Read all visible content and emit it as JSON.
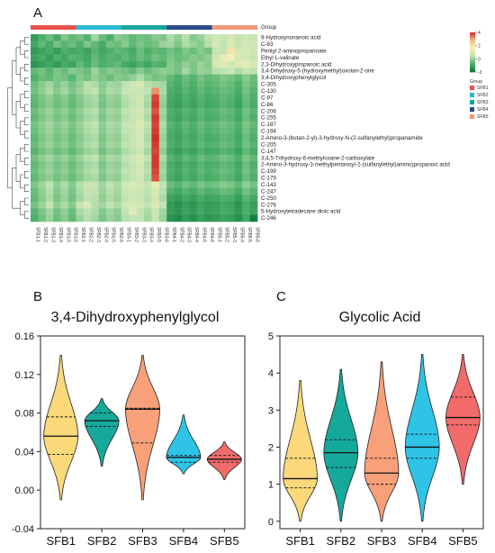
{
  "chart_data": [
    {
      "panel": "A",
      "type": "heatmap",
      "annotation_label": "Group",
      "rows": [
        "9-Hydroxynonanoic acid",
        "C-83",
        "Pentyl 2-aminopropanoate",
        "Ethyl L-valinate",
        "2,3-Dihydroxypropanoic acid",
        "3,4-Dihydroxy-5-(hydroxymethyl)oxolan-2-one",
        "3,4-Dihydroxyphenylglycol",
        "C-305",
        "C-130",
        "C-97",
        "C-86",
        "C-206",
        "C-255",
        "C-187",
        "C-194",
        "2-Amino-3-(butan-2-yl)-3-hydroxy-N-(2-sulfanylethyl)propanamide",
        "C-205",
        "C-147",
        "3,4,5-Trihydroxy-6-methyloxane-2-carboxylate",
        "2-Amino-3-hydroxy-3-methylpentanoyl-2-(sulfanylethyl)amino)propanoic acid",
        "C-199",
        "C-179",
        "C-143",
        "C-247",
        "C-250",
        "C-276",
        "5-Hydroxytetradecane dioic acid",
        "C-246"
      ],
      "columns": [
        "SFB1-1",
        "SFB1-2",
        "SFB1-3",
        "SFB1-4",
        "SFB1-5",
        "SFB1-6",
        "SFB2-1",
        "SFB2-2",
        "SFB2-3",
        "SFB2-4",
        "SFB2-5",
        "SFB2-6",
        "SFB3-1",
        "SFB3-2",
        "SFB3-3",
        "SFB3-4",
        "SFB3-5",
        "SFB3-6",
        "SFB4-1",
        "SFB4-2",
        "SFB4-3",
        "SFB4-4",
        "SFB4-5",
        "SFB4-6",
        "SFB5-1",
        "SFB5-2",
        "SFB5-3",
        "SFB5-4",
        "SFB5-5",
        "SFB5-6"
      ],
      "groups": [
        "SFB1",
        "SFB2",
        "SFB3",
        "SFB4",
        "SFB5"
      ],
      "group_colors": [
        "#e9524a",
        "#2bb8d6",
        "#16a39a",
        "#2a4a8c",
        "#f29a78"
      ],
      "legend_title": "Group",
      "color_scale": {
        "min": -2,
        "max": 4,
        "ticks": [
          4,
          2,
          0,
          -2
        ],
        "colors": [
          "#0b7a3e",
          "#4fb06a",
          "#bfe3b2",
          "#f6f0b8",
          "#f3c78a",
          "#d42a2a"
        ]
      },
      "values": [
        [
          -1.2,
          -0.8,
          -0.5,
          -0.9,
          -0.3,
          -0.6,
          -0.4,
          -0.7,
          0.1,
          -0.5,
          -0.8,
          -0.2,
          -0.3,
          -0.6,
          -0.4,
          -0.5,
          -0.2,
          -0.3,
          0.2,
          -0.1,
          0.3,
          -0.2,
          0.0,
          0.4,
          0.8,
          0.6,
          0.9,
          0.5,
          0.7,
          0.6
        ],
        [
          -1.0,
          -0.6,
          -0.9,
          -0.4,
          -0.7,
          -0.5,
          -0.8,
          -0.3,
          -0.6,
          -0.9,
          -0.4,
          -0.5,
          -0.2,
          -0.6,
          -0.3,
          -0.5,
          -0.4,
          0.0,
          0.1,
          -0.3,
          0.2,
          0.0,
          -0.2,
          0.3,
          0.9,
          0.4,
          1.0,
          0.5,
          0.8,
          0.7
        ],
        [
          -1.3,
          -1.1,
          -0.9,
          -1.2,
          -0.8,
          -1.0,
          -0.9,
          -1.1,
          -0.7,
          -1.0,
          -0.8,
          -0.6,
          -0.7,
          -0.9,
          -0.5,
          -0.8,
          -0.6,
          -0.7,
          -0.4,
          -0.6,
          -0.3,
          -0.5,
          -0.2,
          -0.4,
          0.6,
          0.5,
          2.0,
          0.8,
          0.9,
          0.7
        ],
        [
          -1.1,
          -0.9,
          -1.2,
          -0.8,
          -1.0,
          -0.7,
          -0.8,
          -1.0,
          -0.6,
          -0.9,
          -0.7,
          -0.8,
          -0.6,
          -0.8,
          -0.5,
          -0.7,
          -0.4,
          -0.6,
          -0.3,
          -0.5,
          -0.4,
          -0.2,
          -0.3,
          -0.1,
          0.7,
          1.2,
          1.5,
          0.9,
          0.8,
          0.6
        ],
        [
          -1.4,
          -1.2,
          -1.0,
          -1.3,
          -0.9,
          -1.1,
          -0.6,
          -0.9,
          -0.5,
          -0.8,
          -0.7,
          -0.6,
          -0.9,
          -1.1,
          -0.8,
          -1.0,
          -0.7,
          -0.8,
          -0.2,
          -0.4,
          -0.1,
          -0.3,
          0.0,
          -0.2,
          0.9,
          1.1,
          0.8,
          1.0,
          1.2,
          0.9
        ],
        [
          -0.6,
          -0.4,
          -0.7,
          -0.3,
          -0.5,
          -0.2,
          -0.3,
          -0.5,
          0.0,
          -0.4,
          -0.2,
          -0.3,
          -0.4,
          -0.6,
          -0.2,
          -0.5,
          -0.3,
          -0.1,
          -0.2,
          -0.4,
          0.1,
          -0.3,
          0.0,
          -0.1,
          0.3,
          0.4,
          0.6,
          0.2,
          0.5,
          0.4
        ],
        [
          -0.8,
          -0.5,
          -0.6,
          -0.3,
          -0.4,
          -0.7,
          -0.2,
          -0.4,
          -0.1,
          -0.3,
          -0.5,
          -0.2,
          -0.3,
          -0.1,
          0.2,
          -0.2,
          -0.4,
          -0.3,
          -0.6,
          -0.8,
          -0.5,
          -0.7,
          -0.4,
          -0.6,
          -0.5,
          -0.3,
          -0.4,
          -0.6,
          -0.2,
          -0.5
        ],
        [
          -0.5,
          -0.2,
          0.1,
          -0.3,
          0.0,
          -0.4,
          -0.1,
          0.3,
          0.2,
          -0.2,
          0.1,
          0.0,
          0.4,
          0.6,
          1.0,
          0.3,
          0.2,
          0.1,
          -0.7,
          -0.9,
          -0.6,
          -0.8,
          -0.5,
          -0.7,
          -0.6,
          -0.4,
          -0.5,
          -0.8,
          -0.3,
          -0.6
        ],
        [
          -0.4,
          -0.1,
          0.2,
          -0.2,
          0.1,
          -0.3,
          0.0,
          0.3,
          0.4,
          -0.1,
          0.2,
          0.1,
          0.5,
          0.7,
          0.6,
          0.4,
          3.2,
          0.2,
          -0.8,
          -1.0,
          -0.7,
          -0.9,
          -0.6,
          -0.8,
          -0.7,
          -0.5,
          -0.6,
          -0.9,
          -0.4,
          -0.7
        ],
        [
          -0.6,
          -0.3,
          -0.1,
          -0.4,
          -0.2,
          -0.5,
          -0.2,
          0.1,
          0.2,
          -0.3,
          0.0,
          -0.1,
          0.3,
          0.5,
          0.8,
          0.2,
          3.8,
          0.0,
          -0.9,
          -1.1,
          -0.8,
          -1.0,
          -0.7,
          -0.9,
          -0.8,
          -0.6,
          -0.7,
          -1.0,
          -0.5,
          -0.8
        ],
        [
          -0.7,
          -0.4,
          -0.2,
          -0.5,
          -0.3,
          -0.6,
          -0.3,
          0.0,
          0.1,
          -0.4,
          -0.1,
          -0.2,
          0.2,
          0.4,
          0.7,
          0.1,
          3.9,
          -0.1,
          -1.0,
          -1.2,
          -0.9,
          -1.1,
          -0.8,
          -1.0,
          -0.9,
          -0.7,
          -0.8,
          -1.1,
          -0.6,
          -0.9
        ],
        [
          -0.5,
          -0.2,
          0.0,
          -0.3,
          -0.1,
          -0.4,
          -0.1,
          0.2,
          0.3,
          -0.2,
          0.1,
          0.0,
          0.4,
          0.6,
          0.9,
          0.3,
          3.7,
          0.1,
          -0.8,
          -1.0,
          -0.7,
          -0.9,
          -0.6,
          -0.8,
          -0.7,
          -0.5,
          -0.6,
          -0.9,
          -0.4,
          -0.7
        ],
        [
          -0.6,
          -0.3,
          -0.1,
          -0.4,
          -0.2,
          -0.5,
          -0.2,
          0.1,
          0.2,
          -0.3,
          0.0,
          -0.1,
          0.3,
          0.5,
          0.8,
          0.2,
          3.9,
          0.0,
          -0.9,
          -1.1,
          -0.8,
          -1.0,
          -0.7,
          -0.9,
          -0.8,
          -0.6,
          -0.7,
          -1.0,
          -0.5,
          -0.8
        ],
        [
          -0.4,
          -0.1,
          0.1,
          -0.2,
          0.0,
          -0.3,
          0.0,
          0.3,
          0.4,
          -0.1,
          0.2,
          0.1,
          0.5,
          0.7,
          1.0,
          0.4,
          3.8,
          0.2,
          -0.7,
          -0.9,
          -0.6,
          -0.8,
          -0.5,
          -0.7,
          -0.6,
          -0.4,
          -0.5,
          -0.8,
          -0.3,
          -0.6
        ],
        [
          -0.5,
          -0.2,
          0.0,
          -0.3,
          -0.1,
          -0.4,
          -0.1,
          0.2,
          0.3,
          -0.2,
          0.1,
          0.0,
          0.4,
          0.6,
          0.9,
          0.3,
          3.9,
          0.1,
          -0.8,
          -1.0,
          -0.7,
          -0.9,
          -0.6,
          -0.8,
          -0.7,
          -0.5,
          -0.6,
          -0.9,
          -0.4,
          -0.7
        ],
        [
          -0.6,
          -0.3,
          -0.1,
          -0.4,
          -0.2,
          -0.5,
          -0.2,
          0.1,
          0.2,
          -0.3,
          0.0,
          -0.1,
          0.3,
          0.5,
          0.8,
          0.2,
          4.0,
          0.0,
          -0.9,
          -1.1,
          -0.8,
          -1.0,
          -0.7,
          -0.9,
          -0.8,
          -0.6,
          -0.7,
          -1.0,
          -0.5,
          -0.8
        ],
        [
          -0.5,
          -0.2,
          0.0,
          -0.3,
          -0.1,
          -0.4,
          -0.1,
          0.2,
          0.3,
          -0.2,
          0.1,
          0.0,
          0.4,
          0.6,
          0.9,
          0.3,
          3.9,
          0.1,
          -0.8,
          -1.0,
          -0.7,
          -0.9,
          -0.6,
          -0.8,
          -0.7,
          -0.5,
          -0.6,
          -0.9,
          -0.4,
          -0.7
        ],
        [
          -0.7,
          -0.4,
          -0.2,
          -0.5,
          -0.3,
          -0.6,
          -0.3,
          0.0,
          0.1,
          -0.4,
          -0.1,
          -0.2,
          0.2,
          0.4,
          0.7,
          0.1,
          3.8,
          -0.1,
          -1.0,
          -1.2,
          -0.9,
          -1.1,
          -0.8,
          -1.0,
          -0.9,
          -0.7,
          -0.8,
          -1.1,
          -0.6,
          -0.9
        ],
        [
          -0.4,
          -0.1,
          0.1,
          -0.2,
          0.0,
          -0.3,
          0.0,
          0.3,
          0.4,
          -0.1,
          0.2,
          0.1,
          0.5,
          0.7,
          1.0,
          0.4,
          3.9,
          0.2,
          -0.7,
          -0.9,
          -0.6,
          -0.8,
          -0.5,
          -0.7,
          -0.6,
          -0.4,
          -0.5,
          -0.8,
          -0.3,
          -0.6
        ],
        [
          -0.6,
          -0.3,
          -0.1,
          -0.4,
          -0.2,
          -0.5,
          -0.2,
          0.1,
          0.2,
          -0.3,
          0.0,
          -0.1,
          0.3,
          0.5,
          0.8,
          0.2,
          3.9,
          0.0,
          -0.9,
          -1.1,
          -0.8,
          -1.0,
          -0.7,
          -0.9,
          -0.8,
          -0.6,
          -0.7,
          -1.0,
          -0.5,
          -0.8
        ],
        [
          -0.5,
          -0.2,
          0.0,
          -0.3,
          -0.1,
          -0.4,
          -0.1,
          0.2,
          0.3,
          -0.2,
          0.1,
          0.0,
          0.4,
          0.6,
          0.9,
          0.3,
          3.8,
          0.1,
          -0.8,
          -1.0,
          -0.7,
          -0.9,
          -0.6,
          -0.8,
          -0.7,
          -0.5,
          -0.6,
          -0.9,
          -0.4,
          -0.7
        ],
        [
          -0.6,
          -0.3,
          -0.1,
          -0.4,
          -0.2,
          -0.5,
          -0.2,
          0.1,
          0.2,
          -0.3,
          0.0,
          -0.1,
          0.3,
          0.5,
          0.8,
          0.2,
          3.7,
          0.0,
          -0.9,
          -1.1,
          -0.8,
          -1.0,
          -0.7,
          -0.9,
          -0.8,
          -0.6,
          -0.7,
          -1.0,
          -0.5,
          -0.8
        ],
        [
          -0.3,
          0.0,
          0.4,
          -0.1,
          0.2,
          -0.2,
          0.3,
          0.6,
          0.5,
          0.1,
          0.4,
          0.2,
          0.7,
          0.9,
          0.8,
          0.5,
          1.2,
          0.4,
          -0.5,
          -0.7,
          -0.4,
          -0.6,
          -0.3,
          -0.5,
          -0.4,
          -0.2,
          -0.3,
          -0.6,
          -0.1,
          -0.4
        ],
        [
          -0.5,
          -0.1,
          0.3,
          -0.2,
          0.1,
          -0.3,
          0.2,
          0.5,
          0.4,
          0.0,
          0.3,
          0.1,
          0.6,
          0.8,
          0.7,
          0.4,
          0.9,
          0.3,
          -0.8,
          -1.0,
          -0.7,
          -0.9,
          -0.6,
          -0.8,
          -0.7,
          -0.5,
          -0.6,
          -0.9,
          -0.4,
          -0.7
        ],
        [
          -0.6,
          -0.2,
          0.2,
          -0.3,
          0.0,
          -0.4,
          0.1,
          0.4,
          0.3,
          -0.1,
          0.2,
          0.0,
          0.5,
          0.7,
          0.6,
          0.3,
          0.8,
          0.2,
          -1.1,
          -1.3,
          -1.0,
          -1.2,
          -0.9,
          -1.1,
          -1.0,
          -0.8,
          -0.9,
          -1.2,
          -0.7,
          -1.0
        ],
        [
          -0.4,
          0.0,
          0.5,
          -0.1,
          0.2,
          -0.2,
          0.6,
          1.0,
          0.3,
          0.1,
          0.4,
          0.2,
          0.7,
          0.9,
          0.8,
          0.5,
          1.0,
          0.4,
          -1.3,
          -1.5,
          -1.2,
          -1.4,
          -1.1,
          -1.3,
          -1.2,
          -1.0,
          -1.1,
          -1.4,
          -0.9,
          -1.2
        ],
        [
          -0.7,
          -0.3,
          0.1,
          -0.4,
          -0.1,
          -0.5,
          0.2,
          0.4,
          0.2,
          -0.2,
          0.1,
          -0.1,
          0.4,
          1.1,
          0.5,
          0.2,
          0.7,
          0.1,
          -1.2,
          -1.4,
          -1.1,
          -1.3,
          -1.0,
          -1.2,
          -1.1,
          -0.9,
          -1.0,
          -1.3,
          -0.8,
          -1.1
        ],
        [
          -0.8,
          -0.4,
          0.0,
          -0.5,
          -0.2,
          -0.6,
          0.0,
          0.3,
          0.1,
          -0.3,
          0.0,
          -0.2,
          0.3,
          0.5,
          0.4,
          0.1,
          0.6,
          0.0,
          -1.4,
          -1.6,
          -1.3,
          -1.5,
          -1.2,
          -1.4,
          -1.3,
          -1.1,
          -1.2,
          -1.5,
          -1.0,
          -1.9
        ]
      ]
    },
    {
      "panel": "B",
      "type": "violin",
      "title": "3,4-Dihydroxyphenylglycol",
      "categories": [
        "SFB1",
        "SFB2",
        "SFB3",
        "SFB4",
        "SFB5"
      ],
      "colors": [
        "#fbd87a",
        "#15a99b",
        "#f7a07a",
        "#2fc4e6",
        "#f26b6b"
      ],
      "ylim": [
        -0.04,
        0.16
      ],
      "yticks": [
        -0.04,
        0.0,
        0.04,
        0.08,
        0.12,
        0.16
      ],
      "violins": [
        {
          "min": -0.01,
          "max": 0.14,
          "median": 0.056,
          "q1": 0.037,
          "q3": 0.076
        },
        {
          "min": 0.025,
          "max": 0.095,
          "median": 0.072,
          "q1": 0.066,
          "q3": 0.08
        },
        {
          "min": -0.01,
          "max": 0.14,
          "median": 0.084,
          "q1": 0.049,
          "q3": 0.085
        },
        {
          "min": 0.017,
          "max": 0.078,
          "median": 0.034,
          "q1": 0.029,
          "q3": 0.036
        },
        {
          "min": 0.011,
          "max": 0.05,
          "median": 0.032,
          "q1": 0.029,
          "q3": 0.036
        }
      ]
    },
    {
      "panel": "C",
      "type": "violin",
      "title": "Glycolic Acid",
      "categories": [
        "SFB1",
        "SFB2",
        "SFB3",
        "SFB4",
        "SFB5"
      ],
      "colors": [
        "#fbd87a",
        "#15a99b",
        "#f7a07a",
        "#2fc4e6",
        "#f26b6b"
      ],
      "ylim": [
        -0.2,
        5
      ],
      "yticks": [
        0,
        1,
        2,
        3,
        4,
        5
      ],
      "violins": [
        {
          "min": 0.0,
          "max": 3.8,
          "median": 1.15,
          "q1": 0.9,
          "q3": 1.7
        },
        {
          "min": 0.0,
          "max": 4.1,
          "median": 1.85,
          "q1": 1.45,
          "q3": 2.2
        },
        {
          "min": 0.0,
          "max": 4.3,
          "median": 1.3,
          "q1": 1.0,
          "q3": 1.7
        },
        {
          "min": 0.0,
          "max": 4.5,
          "median": 2.0,
          "q1": 1.7,
          "q3": 2.35
        },
        {
          "min": 1.0,
          "max": 4.5,
          "median": 2.8,
          "q1": 2.6,
          "q3": 3.35
        }
      ]
    }
  ],
  "panels": {
    "a": "A",
    "b": "B",
    "c": "C"
  }
}
